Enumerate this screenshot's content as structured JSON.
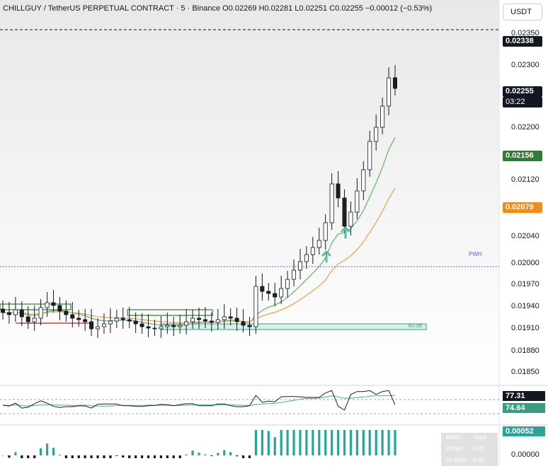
{
  "header": {
    "symbol": "CHILLGUY",
    "pair": "TetherUS PERPETUAL CONTRACT",
    "interval": "5",
    "exchange": "Binance",
    "title": "CHILLGUY / TetherUS PERPETUAL CONTRACT · 5 · Binance   O0.02269  H0.02281  L0.02251  C0.02255  −0.00012 (−0.53%)"
  },
  "ohlc": {
    "open": "0.02269",
    "high": "0.02281",
    "low": "0.02251",
    "close": "0.02255",
    "change": "−0.00012 (−0.53%)"
  },
  "currency_button": "USDT",
  "price_axis": [
    "0.02350",
    "0.02300",
    "0.02200",
    "0.02120",
    "0.02040",
    "0.02000",
    "0.01970",
    "0.01940",
    "0.01910",
    "0.01880",
    "0.01850"
  ],
  "tags": {
    "high_line": "0.02338",
    "last_price": "0.02255",
    "countdown": "03:22",
    "ema9": "0.02156",
    "ema20": "0.02079",
    "rsi": "77.31",
    "rsi_ma": "74.64",
    "macd_hist": "0.00052",
    "macd_zero": "0.00000"
  },
  "labels": {
    "pwh": "PWH",
    "bu_ob": "BU-OB"
  },
  "colors": {
    "up": "#089981",
    "down": "#1e1e1e",
    "ema9": "#5cb85c",
    "ema20": "#f0a04b",
    "pwh_line": "#6a5acd",
    "level_red": "#e03a3a",
    "rsi_line": "#1e1e1e",
    "rsi_ma": "#5fb8a8",
    "hist": "#26a69a"
  },
  "metric_table": {
    "header": [
      "Metric",
      "Value"
    ],
    "rows": [
      [
        "9 EMA",
        "0.02"
      ],
      [
        "20 EMA",
        "0.02"
      ]
    ]
  },
  "chart_data": {
    "type": "candlestick",
    "timeframe": "5",
    "price_range": [
      0.0184,
      0.0236
    ],
    "closes_approx": [
      0.01938,
      0.01935,
      0.01942,
      0.01932,
      0.01925,
      0.0193,
      0.01945,
      0.01952,
      0.01948,
      0.0194,
      0.01935,
      0.0193,
      0.01928,
      0.01925,
      0.01915,
      0.01918,
      0.01922,
      0.01926,
      0.0193,
      0.01928,
      0.01926,
      0.01922,
      0.01918,
      0.01916,
      0.01915,
      0.01918,
      0.0192,
      0.01918,
      0.0192,
      0.01925,
      0.0193,
      0.01928,
      0.01926,
      0.01924,
      0.01928,
      0.01932,
      0.0193,
      0.01925,
      0.0192,
      0.01918,
      0.01975,
      0.01968,
      0.01965,
      0.0196,
      0.01972,
      0.01985,
      0.01998,
      0.0201,
      0.0202,
      0.0203,
      0.0204,
      0.02065,
      0.0212,
      0.021,
      0.0206,
      0.0208,
      0.0211,
      0.0214,
      0.0218,
      0.022,
      0.0223,
      0.0227,
      0.02255
    ],
    "ema9_end": 0.02156,
    "ema20_end": 0.02079,
    "pwh": 0.02003,
    "high_line": 0.02338
  }
}
